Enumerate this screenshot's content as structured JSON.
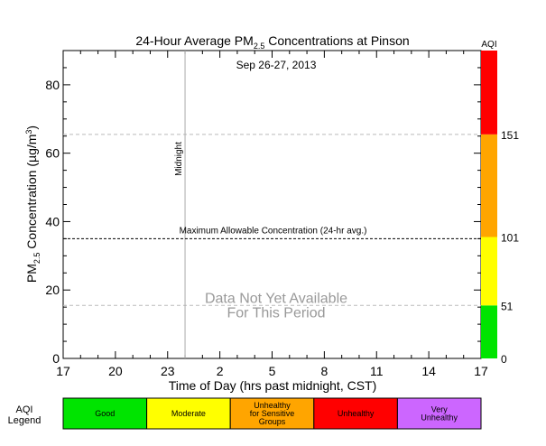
{
  "chart_data": {
    "type": "line",
    "title_prefix": "24-Hour Average PM",
    "title_sub": "2.5",
    "title_suffix": " Concentrations at Pinson",
    "subtitle": "Sep 26-27, 2013",
    "ylabel_prefix": "PM",
    "ylabel_sub": "2.5",
    "ylabel_suffix": " Concentration (µg/m",
    "ylabel_sup": "3",
    "ylabel_end": ")",
    "xlabel": "Time of Day (hrs past midnight, CST)",
    "x_ticks": [
      "17",
      "20",
      "23",
      "2",
      "5",
      "8",
      "11",
      "14",
      "17"
    ],
    "y_ticks": [
      0,
      20,
      40,
      60,
      80
    ],
    "ylim": [
      0,
      90
    ],
    "series": [],
    "midnight_label": "Midnight",
    "max_allowable_label": "Maximum Allowable Concentration (24-hr avg.)",
    "max_allowable_value": 35,
    "aqi_dashed_lines": [
      15.5,
      65.5
    ],
    "no_data_lines": [
      "Data Not Yet Available",
      "For This Period"
    ],
    "aqi_axis_title": "AQI",
    "aqi_bar": [
      {
        "from": 0,
        "to": 15.5,
        "color": "#00e400",
        "label": "0"
      },
      {
        "from": 15.5,
        "to": 35.5,
        "color": "#ffff00",
        "label": "51"
      },
      {
        "from": 35.5,
        "to": 65.5,
        "color": "#ffa500",
        "label": "101"
      },
      {
        "from": 65.5,
        "to": 90,
        "color": "#ff0000",
        "label": "151"
      }
    ]
  },
  "legend": {
    "title_line1": "AQI",
    "title_line2": "Legend",
    "items": [
      {
        "lines": [
          "Good"
        ],
        "color": "#00e400"
      },
      {
        "lines": [
          "Moderate"
        ],
        "color": "#ffff00"
      },
      {
        "lines": [
          "Unhealthy",
          "for Sensitive",
          "Groups"
        ],
        "color": "#ffa500"
      },
      {
        "lines": [
          "Unhealthy"
        ],
        "color": "#ff0000"
      },
      {
        "lines": [
          "Very",
          "Unhealthy"
        ],
        "color": "#cc66ff"
      }
    ]
  }
}
